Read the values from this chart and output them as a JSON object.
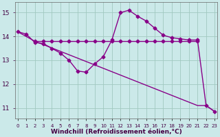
{
  "bg_color": "#cbe9e9",
  "grid_color": "#a0c8c0",
  "line_color": "#880088",
  "xlabel": "Windchill (Refroidissement éolien,°C)",
  "xlabel_fontsize": 6.5,
  "ylabel_ticks": [
    11,
    12,
    13,
    14,
    15
  ],
  "ylim": [
    10.55,
    15.45
  ],
  "xlim": [
    -0.3,
    23.3
  ],
  "wavy_x": [
    0,
    1,
    2,
    3,
    4,
    5,
    6,
    7,
    8,
    9,
    10,
    11,
    12,
    13,
    14,
    15,
    16,
    17,
    18,
    19,
    20,
    21,
    22,
    23
  ],
  "wavy_y": [
    14.2,
    14.1,
    13.75,
    13.7,
    13.5,
    13.3,
    13.0,
    12.55,
    12.5,
    12.85,
    13.15,
    13.85,
    15.0,
    15.1,
    14.85,
    14.65,
    14.35,
    14.05,
    13.95,
    13.9,
    13.85,
    13.85,
    11.1,
    10.85
  ],
  "flat_x": [
    2,
    3,
    4,
    5,
    6,
    7,
    8,
    9,
    10,
    11,
    12,
    13,
    14,
    15,
    16,
    17,
    18,
    19,
    20,
    21
  ],
  "flat_y": [
    13.8,
    13.8,
    13.8,
    13.8,
    13.8,
    13.8,
    13.8,
    13.8,
    13.8,
    13.8,
    13.8,
    13.8,
    13.8,
    13.8,
    13.8,
    13.8,
    13.8,
    13.8,
    13.8,
    13.8
  ],
  "diag_x": [
    0,
    2,
    21,
    22,
    23
  ],
  "diag_y": [
    14.2,
    13.8,
    11.1,
    11.1,
    10.85
  ],
  "marker": "D",
  "marker_size": 2.5,
  "lw": 1.0
}
